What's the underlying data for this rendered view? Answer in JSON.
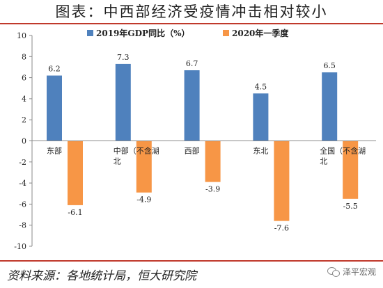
{
  "title": "图表：中西部经济受疫情冲击相对较小",
  "footer": {
    "source_label": "资料来源：",
    "source_text": "各地统计局，恒大研究院"
  },
  "brand": "泽平宏观",
  "chart_data": {
    "type": "bar",
    "categories": [
      "东部",
      "中部（不含湖北",
      "西部",
      "东北",
      "全国（不含湖北"
    ],
    "category_lines": [
      [
        "东部"
      ],
      [
        "中部（不含湖",
        "北"
      ],
      [
        "西部"
      ],
      [
        "东北"
      ],
      [
        "全国（不含湖",
        "北"
      ]
    ],
    "series": [
      {
        "name": "2019年GDP同比（%）",
        "values": [
          6.2,
          7.3,
          6.7,
          4.5,
          6.5
        ],
        "color": "#4f81bd"
      },
      {
        "name": "2020年一季度",
        "values": [
          -6.1,
          -4.9,
          -3.9,
          -7.6,
          -5.5
        ],
        "color": "#f79646"
      }
    ],
    "ylim": [
      -10,
      10
    ],
    "yticks": [
      10,
      8,
      6,
      4,
      2,
      0,
      -2,
      -4,
      -6,
      -8,
      -10
    ],
    "grid": false,
    "legend_position": "top"
  }
}
